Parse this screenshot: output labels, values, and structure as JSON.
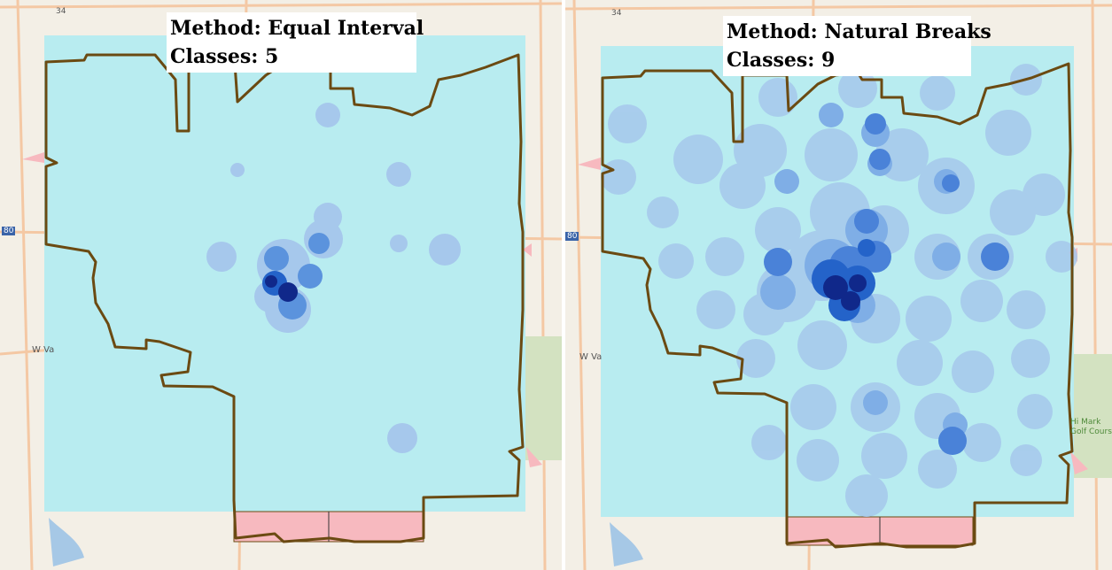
{
  "panels": [
    {
      "method_label": "Method: Equal Interval",
      "classes_label": "Classes: 5",
      "basemap_labels": {
        "highway_shield": "34",
        "street_left": "W Va",
        "interstate_shield": "80"
      }
    },
    {
      "method_label": "Method: Natural Breaks",
      "classes_label": "Classes: 9",
      "basemap_labels": {
        "highway_shield": "34",
        "street_left": "W Va",
        "interstate_shield": "80",
        "poi": "Hi Mark\nGolf Course"
      }
    }
  ],
  "colors": {
    "basemap": "#f3efe6",
    "road": "#f4c8a4",
    "class_background": "#b8ecf0",
    "class_light": "#a6c8ec",
    "class_mid": "#5b93dd",
    "class_strong": "#2463c9",
    "class_darkest": "#10288a",
    "boundary": "#6b4a12",
    "outside_area": "#f7b9bf",
    "water": "#a6c8e6",
    "park": "#d3e2c1"
  }
}
